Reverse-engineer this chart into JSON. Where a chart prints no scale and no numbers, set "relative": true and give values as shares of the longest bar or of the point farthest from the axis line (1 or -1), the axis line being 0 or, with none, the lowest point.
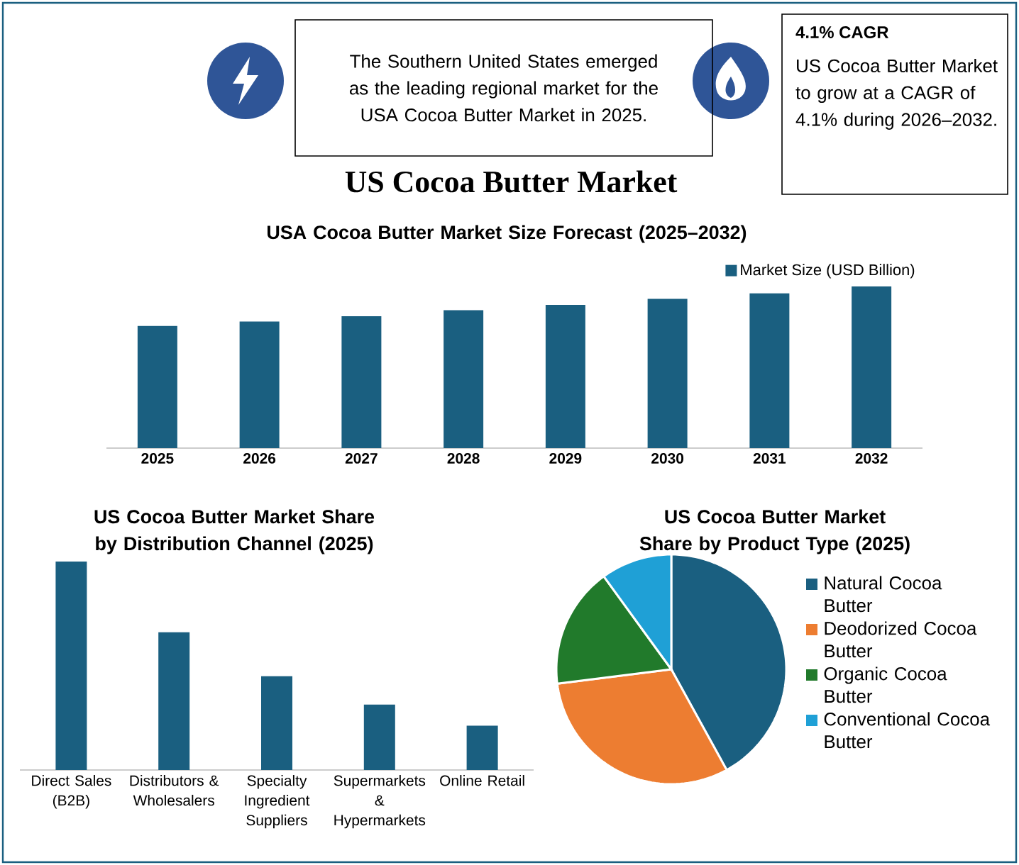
{
  "chart_data": [
    {
      "type": "other",
      "title": "US Cocoa Butter Market",
      "annotations": [
        "The Southern United States emerged as the leading regional market for the USA Cocoa Butter Market in 2025.",
        "**4.1% CAGR**",
        "US Cocoa Butter Market to grow at a CAGR of 4.1% during 2026–2032."
      ]
    },
    {
      "type": "bar",
      "title": "USA Cocoa Butter Market Size Forecast (2025–2032)",
      "relative": true,
      "legend": "top right",
      "categories": [
        "2025",
        "2026",
        "2027",
        "2028",
        "2029",
        "2030",
        "2031",
        "2032"
      ],
      "series": [
        {
          "name": "Market Size (USD Billion)",
          "color": "#1a5f80",
          "values": [
            0.756,
            0.783,
            0.816,
            0.853,
            0.886,
            0.923,
            0.957,
            1
          ]
        }
      ]
    },
    {
      "type": "bar",
      "title": "US Cocoa Butter Market Share by Distribution Channel (2025)",
      "relative": true,
      "categories": [
        "Direct Sales (B2B)",
        "Distributors & Wholesalers",
        "Specialty Ingredient Suppliers",
        "Supermarkets & Hypermarkets",
        "Online Retail"
      ],
      "color": "#1a5f80",
      "values": [
        1,
        0.661,
        0.45,
        0.314,
        0.213
      ]
    },
    {
      "type": "pie",
      "title": "US Cocoa Butter Market Share by Product Type (2025)",
      "legend": "right",
      "categories": [
        "Natural Cocoa Butter",
        "Deodorized Cocoa Butter",
        "Organic Cocoa Butter",
        "Conventional Cocoa Butter"
      ],
      "values": [
        42,
        31,
        17,
        10
      ],
      "colors": [
        "#1a5f80",
        "#ed7d31",
        "#217a2b",
        "#1fa0d6"
      ]
    }
  ]
}
